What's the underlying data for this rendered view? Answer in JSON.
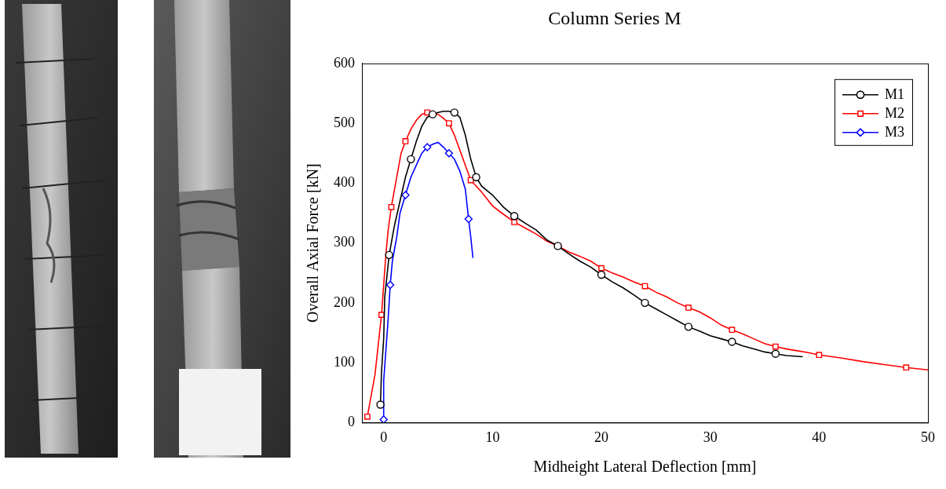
{
  "chart_data": {
    "type": "line",
    "title": "Column Series M",
    "x_label": "Midheight Lateral Deflection [mm]",
    "y_label": "Overall Axial Force [kN]",
    "xlim": [
      -2,
      50
    ],
    "xticks": [
      0,
      10,
      20,
      30,
      40,
      50
    ],
    "ylim": [
      0,
      600
    ],
    "yticks": [
      0,
      100,
      200,
      300,
      400,
      500,
      600
    ],
    "grid": false,
    "legend": "upper right",
    "series": [
      {
        "name": "M1",
        "color": "#000000",
        "marker": "circle",
        "line_style": "solid",
        "x": [
          -0.3,
          -0.2,
          0,
          0.1,
          0.5,
          1,
          1.5,
          2,
          2.5,
          3,
          3.5,
          4,
          4.5,
          5,
          5.5,
          6,
          6.5,
          7,
          7.5,
          8,
          8.5,
          9,
          10,
          11,
          12,
          13,
          14,
          15,
          16,
          17,
          18,
          19,
          20,
          21,
          22,
          23,
          24,
          25,
          26,
          27,
          28,
          29,
          30,
          31,
          32,
          33,
          34,
          35,
          36,
          37,
          38.5
        ],
        "values": [
          30,
          85,
          140,
          210,
          280,
          330,
          370,
          410,
          440,
          470,
          495,
          510,
          515,
          518,
          520,
          520,
          518,
          510,
          480,
          440,
          410,
          395,
          380,
          360,
          345,
          333,
          322,
          305,
          295,
          282,
          270,
          260,
          247,
          235,
          225,
          213,
          200,
          190,
          180,
          170,
          160,
          153,
          145,
          140,
          135,
          128,
          123,
          118,
          115,
          112,
          110
        ]
      },
      {
        "name": "M2",
        "color": "#ff0000",
        "marker": "square",
        "line_style": "solid",
        "x": [
          -1.5,
          -1.2,
          -0.8,
          -0.5,
          -0.2,
          0,
          0.2,
          0.4,
          0.7,
          1,
          1.3,
          1.6,
          2,
          2.5,
          3,
          3.5,
          4,
          4.5,
          5,
          5.5,
          6,
          6.5,
          7,
          7.5,
          8,
          9,
          10,
          11,
          12,
          13,
          14,
          15,
          16,
          17,
          18,
          19,
          20,
          21,
          22,
          23,
          24,
          25,
          26,
          27,
          28,
          29,
          30,
          31,
          32,
          33,
          34,
          35,
          36,
          37,
          38,
          39,
          40,
          42,
          44,
          46,
          48,
          50
        ],
        "values": [
          10,
          40,
          80,
          130,
          180,
          230,
          280,
          320,
          360,
          390,
          420,
          450,
          470,
          490,
          505,
          515,
          518,
          518,
          515,
          508,
          500,
          480,
          455,
          430,
          405,
          385,
          362,
          348,
          335,
          325,
          315,
          303,
          295,
          285,
          278,
          270,
          258,
          250,
          243,
          235,
          228,
          218,
          210,
          200,
          192,
          185,
          175,
          163,
          155,
          148,
          140,
          132,
          127,
          123,
          120,
          117,
          113,
          108,
          102,
          97,
          92,
          88
        ]
      },
      {
        "name": "M3",
        "color": "#0000ff",
        "marker": "diamond",
        "line_style": "solid",
        "x": [
          0,
          0,
          0.2,
          0.4,
          0.6,
          0.8,
          1.2,
          1.5,
          2,
          2.5,
          3,
          3.5,
          4,
          4.5,
          5,
          5.5,
          6,
          6.5,
          7,
          7.5,
          7.8,
          8,
          8.2
        ],
        "values": [
          5,
          70,
          120,
          170,
          230,
          270,
          310,
          350,
          380,
          410,
          430,
          450,
          460,
          465,
          468,
          460,
          450,
          440,
          420,
          390,
          340,
          310,
          275
        ]
      }
    ]
  }
}
